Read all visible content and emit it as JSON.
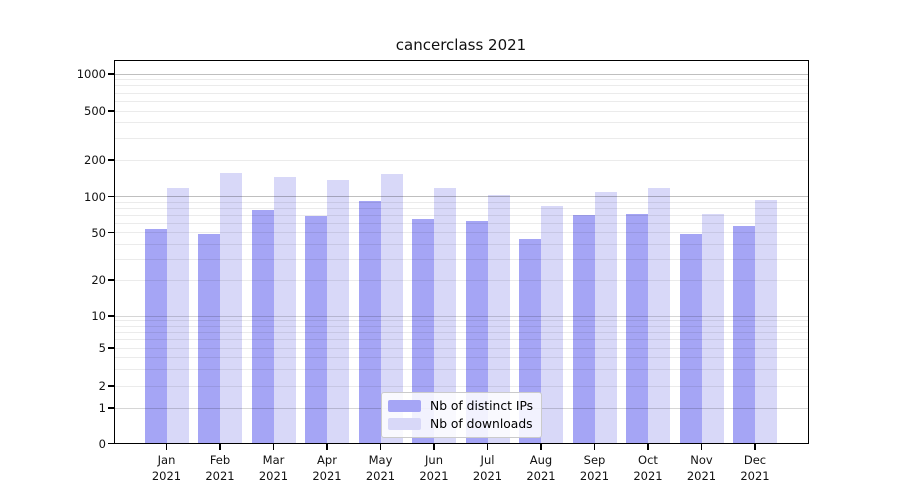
{
  "chart_data": {
    "type": "bar",
    "title": "cancerclass 2021",
    "categories": [
      "Jan",
      "Feb",
      "Mar",
      "Apr",
      "May",
      "Jun",
      "Jul",
      "Aug",
      "Sep",
      "Oct",
      "Nov",
      "Dec"
    ],
    "category_year": "2021",
    "series": [
      {
        "name": "Nb of distinct IPs",
        "color": "#a5a5f5",
        "values": [
          54,
          49,
          77,
          69,
          92,
          65,
          63,
          44,
          70,
          71,
          49,
          57
        ]
      },
      {
        "name": "Nb of downloads",
        "color": "#d8d8f8",
        "values": [
          118,
          156,
          145,
          137,
          153,
          118,
          102,
          83,
          108,
          117,
          72,
          93
        ]
      }
    ],
    "yscale": "symlog",
    "yticks": [
      0,
      1,
      2,
      5,
      10,
      20,
      50,
      100,
      200,
      500,
      1000
    ],
    "ylim": [
      0,
      1400
    ],
    "grid": true,
    "legend_position": "lower-center"
  }
}
